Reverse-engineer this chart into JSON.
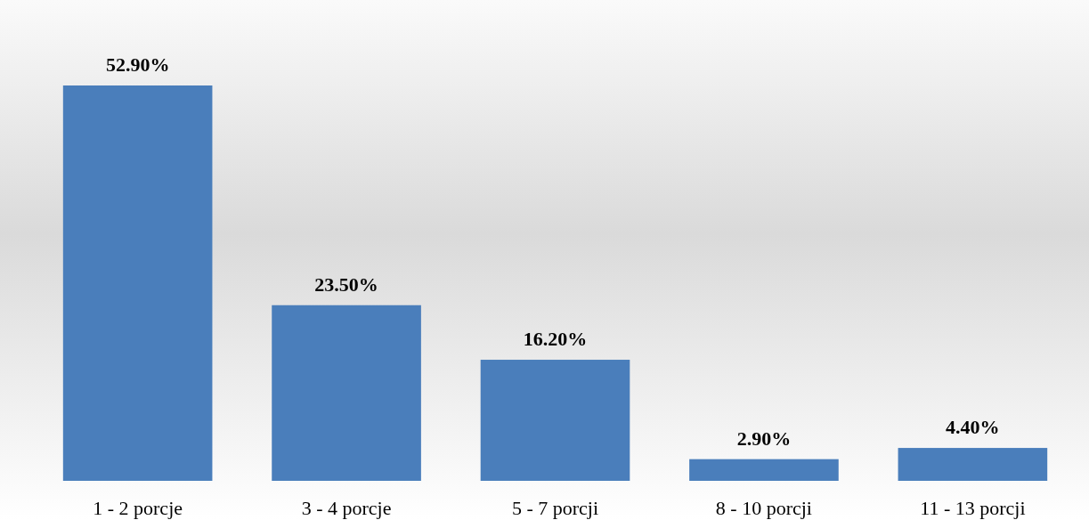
{
  "chart_data": {
    "type": "bar",
    "categories": [
      "1 - 2 porcje",
      "3 - 4 porcje",
      "5 - 7 porcji",
      "8 - 10 porcji",
      "11 - 13 porcji"
    ],
    "values": [
      52.9,
      23.5,
      16.2,
      2.9,
      4.4
    ],
    "value_labels": [
      "52.90%",
      "23.50%",
      "16.20%",
      "2.90%",
      "4.40%"
    ],
    "color": "#4a7ebb"
  }
}
